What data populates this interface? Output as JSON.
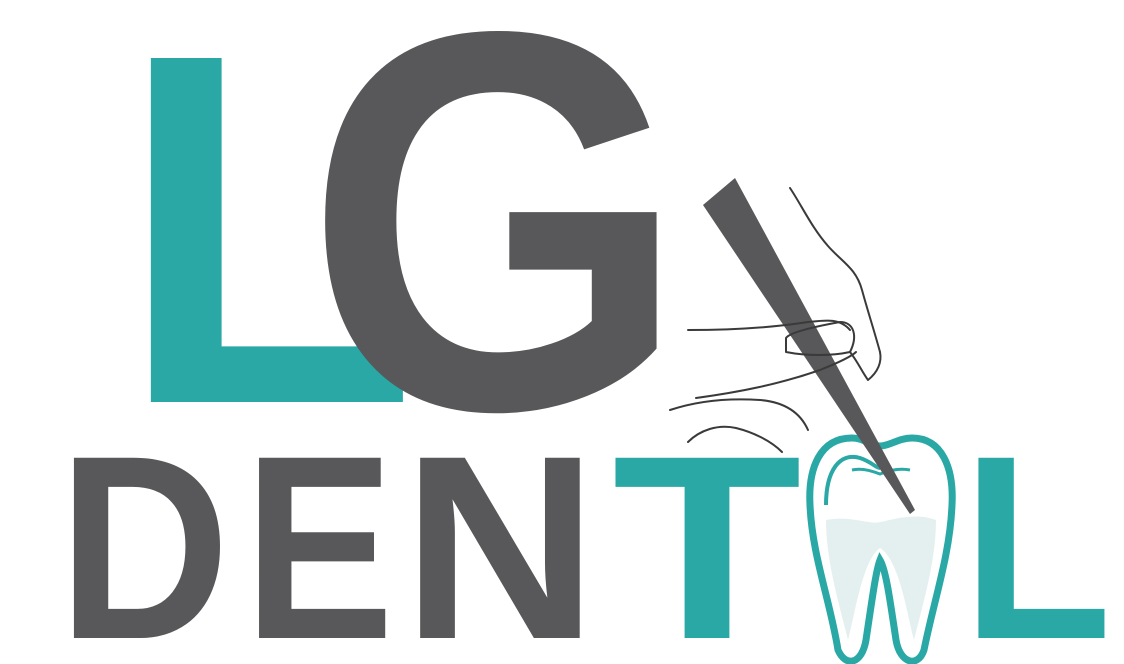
{
  "logo": {
    "monogram": {
      "first_letter": "L",
      "second_letter": "G"
    },
    "word": {
      "letters": [
        "D",
        "E",
        "N",
        "T",
        "A",
        "L"
      ],
      "text": "DENTAL"
    },
    "colors": {
      "teal": "#2aa8a6",
      "gray": "#58585a",
      "outline": "#3a3a3a",
      "tooth_fill": "#e4f0ef"
    },
    "icons": [
      "tooth-icon",
      "hand-icon",
      "dental-probe-icon"
    ]
  }
}
